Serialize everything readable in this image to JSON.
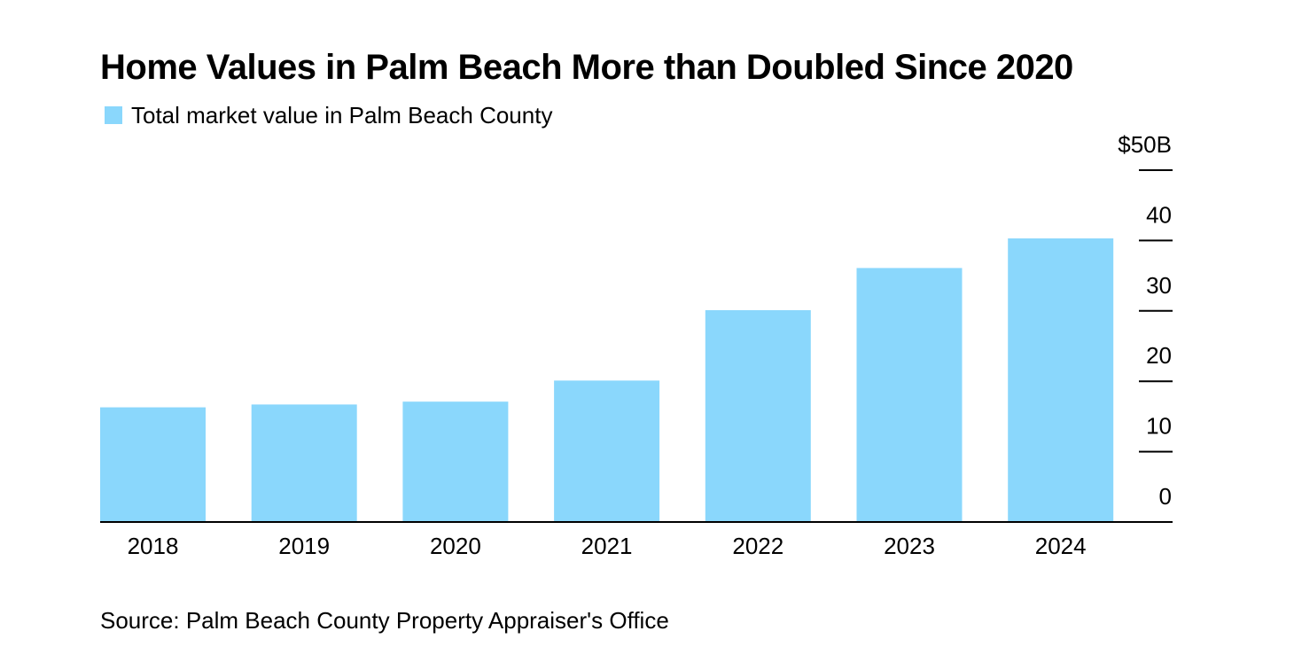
{
  "title": "Home Values in Palm Beach More than Doubled Since 2020",
  "source": "Source: Palm Beach County Property Appraiser's Office",
  "colors": {
    "bar": "#8ad7fc",
    "axis": "#000000",
    "text": "#000000"
  },
  "chart_data": {
    "type": "bar",
    "title": "Home Values in Palm Beach More than Doubled Since 2020",
    "xlabel": "",
    "ylabel": "",
    "categories": [
      "2018",
      "2019",
      "2020",
      "2021",
      "2022",
      "2023",
      "2024"
    ],
    "series": [
      {
        "name": "Total market value in Palm Beach County",
        "values": [
          16.3,
          16.7,
          17.1,
          20.1,
          30.1,
          36.1,
          40.3
        ]
      }
    ],
    "ylim": [
      0,
      50
    ],
    "yticks": [
      0,
      10,
      20,
      30,
      40,
      50
    ],
    "ytick_labels": [
      "0",
      "10",
      "20",
      "30",
      "40",
      "$50B"
    ],
    "y_axis_position": "right",
    "legend_position": "top-left",
    "grid": false
  }
}
